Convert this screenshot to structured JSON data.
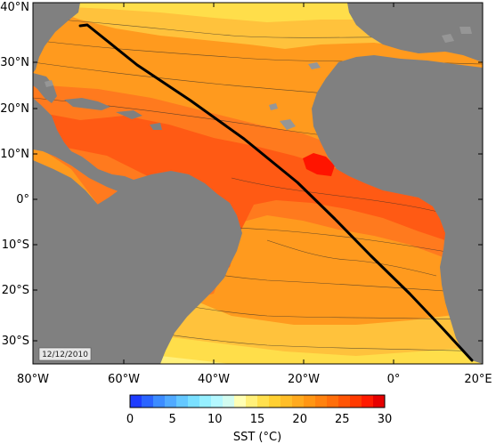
{
  "map": {
    "lat_labels": [
      "40°N",
      "30°N",
      "20°N",
      "10°N",
      "0°",
      "10°S",
      "20°S",
      "30°S"
    ],
    "lon_labels": [
      "80°W",
      "60°W",
      "40°W",
      "20°W",
      "0°",
      "20°E"
    ],
    "date_stamp": "12/12/2010"
  },
  "colorbar": {
    "tick_labels": [
      "0",
      "5",
      "10",
      "15",
      "20",
      "25",
      "30"
    ],
    "title": "SST (°C)",
    "colors": [
      "#1e3cff",
      "#2a64ff",
      "#3c8cff",
      "#50aaff",
      "#64c8ff",
      "#7ae0ff",
      "#96f0ff",
      "#b4f8ff",
      "#d2fcf0",
      "#ffffb4",
      "#fff07a",
      "#ffe04e",
      "#ffd032",
      "#ffbe28",
      "#ffaa1e",
      "#ff9614",
      "#ff820f",
      "#ff6e0a",
      "#ff5505",
      "#ff3a00",
      "#ff1a00",
      "#e60000"
    ]
  },
  "colors": {
    "land": "#808080",
    "shelf": "#969696",
    "warm_core": "#ff5a14",
    "warm": "#ff7a1e",
    "mid": "#ff9a1e",
    "cool": "#ffc23c",
    "cooler": "#ffde4a",
    "coldest": "#fff07a",
    "hot_spot": "#ff1400",
    "track": "#000000"
  }
}
